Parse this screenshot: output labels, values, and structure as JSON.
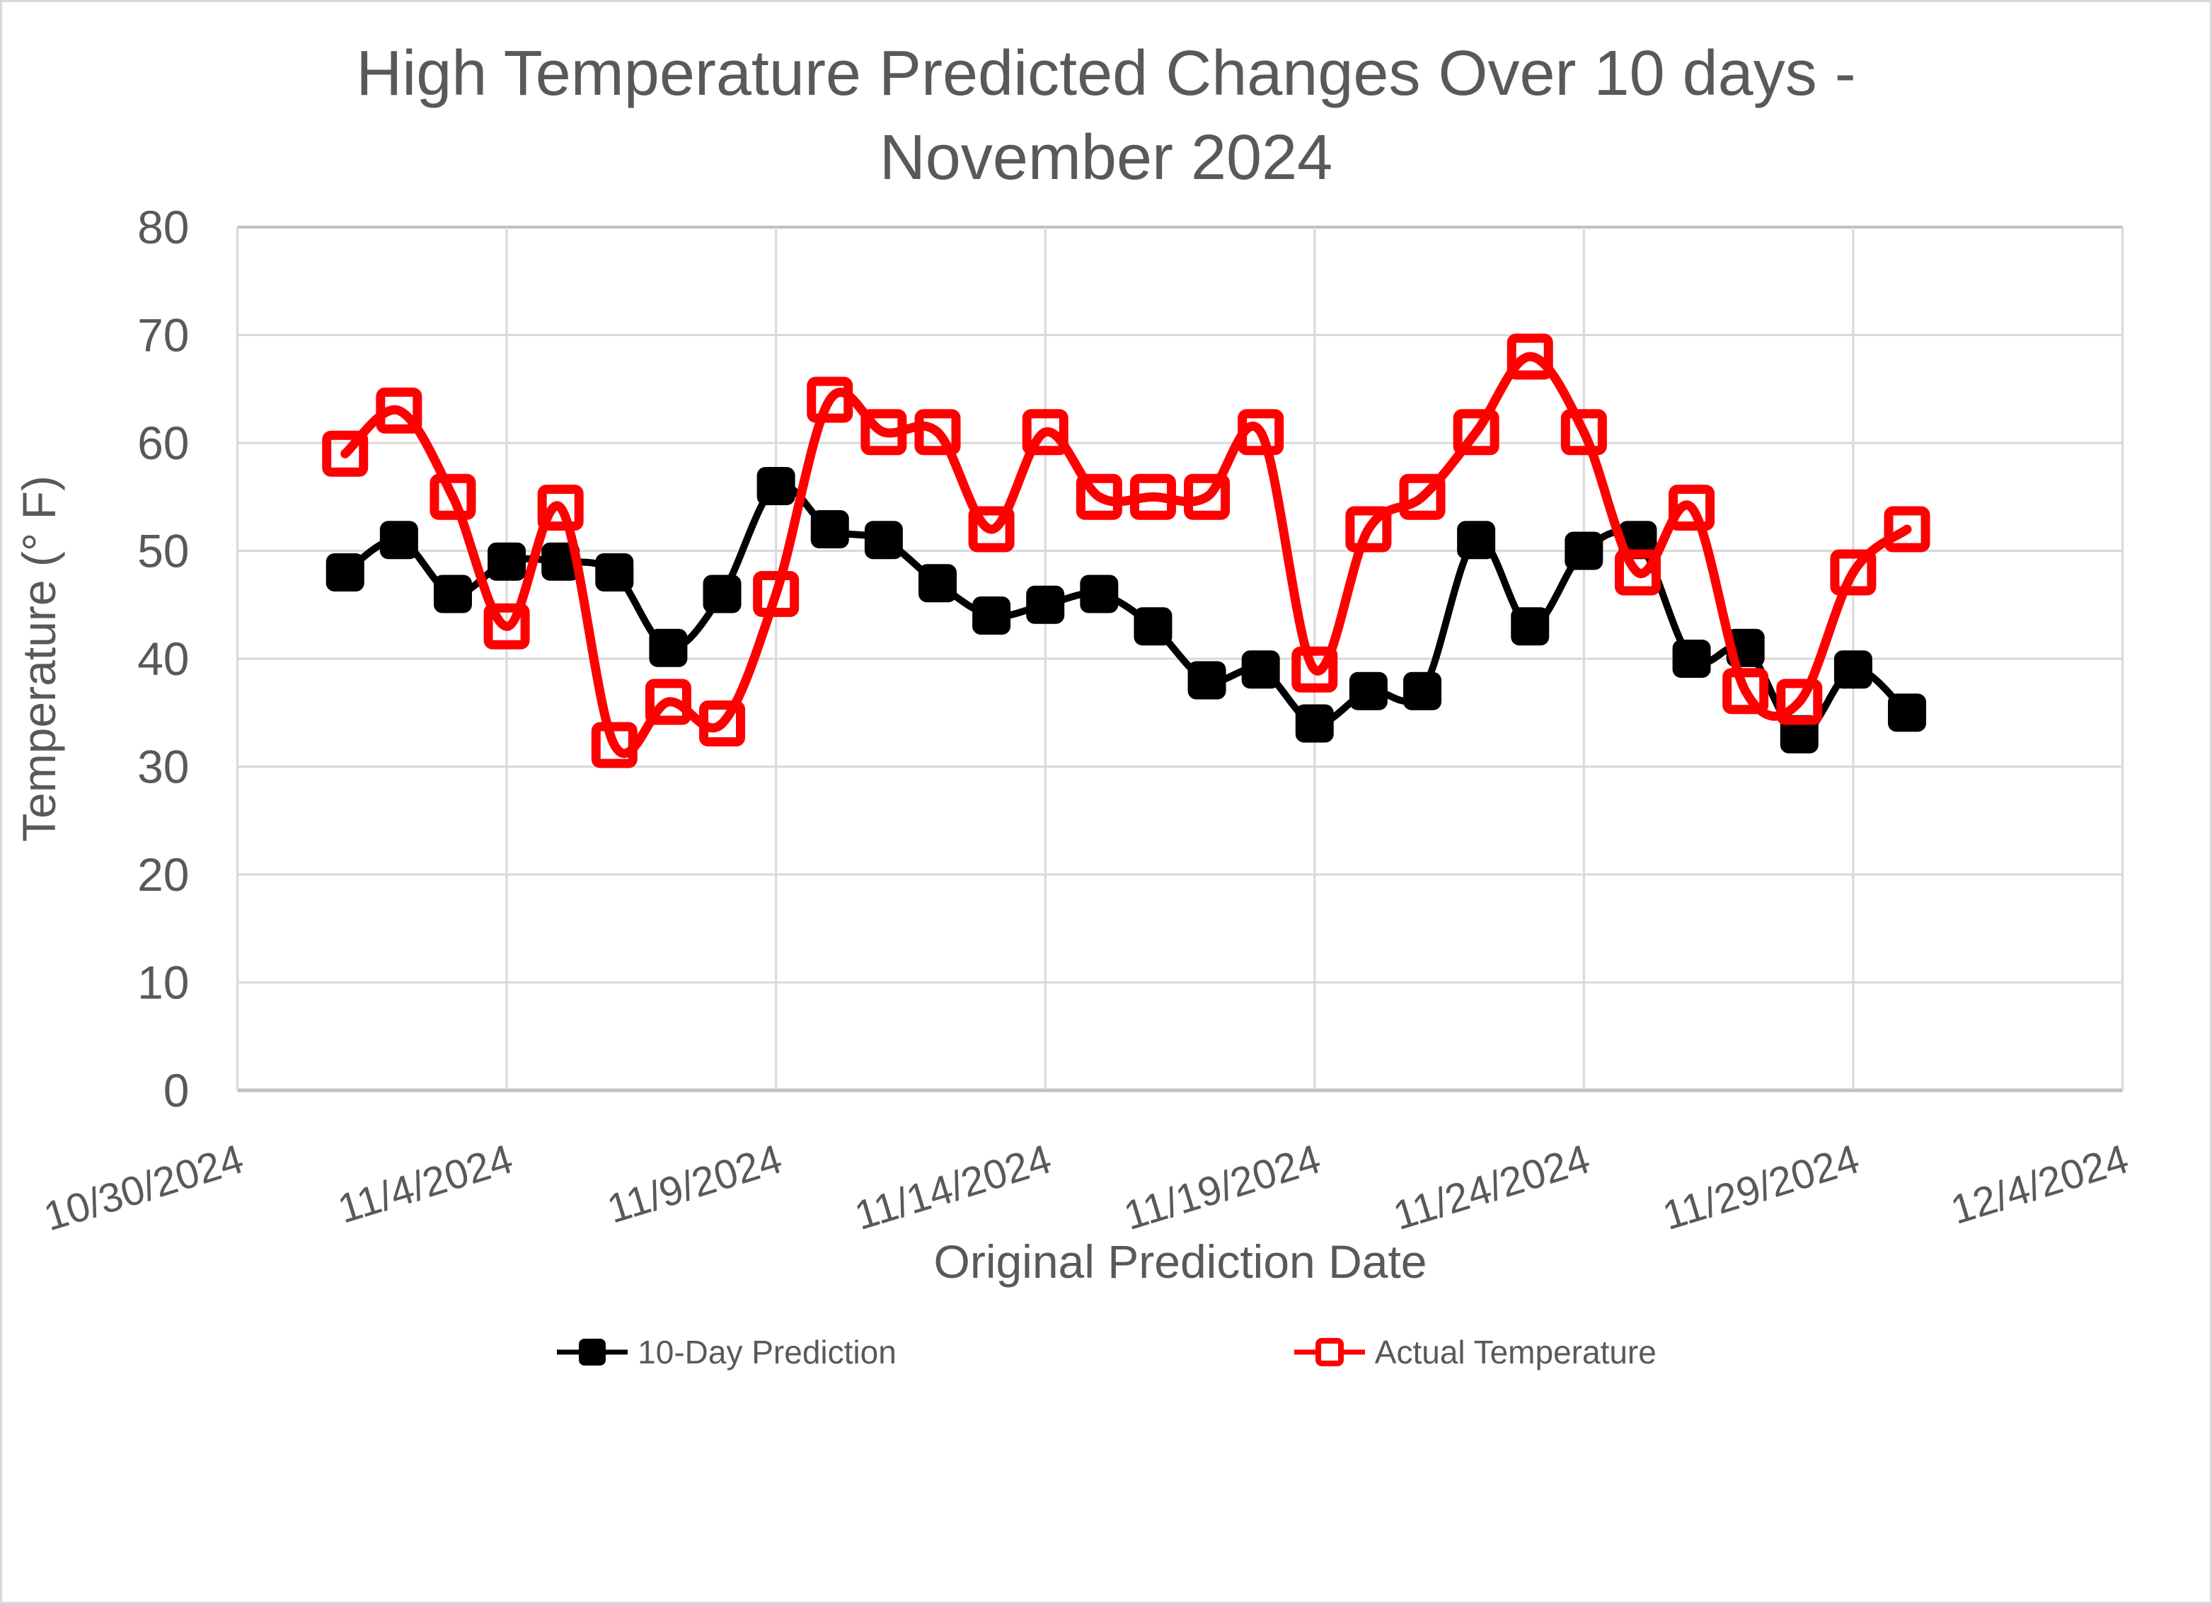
{
  "title": {
    "line1": "High Temperature Predicted Changes Over 10 days -",
    "line2": "November 2024"
  },
  "chart_data": {
    "type": "line",
    "title": "High Temperature Predicted Changes Over 10 days - November 2024",
    "xlabel": "Original Prediction Date",
    "ylabel": "Temperature (° F)",
    "ylim": [
      0,
      80
    ],
    "ytick_step": 10,
    "ytick_labels": [
      "0",
      "10",
      "20",
      "30",
      "40",
      "50",
      "60",
      "70",
      "80"
    ],
    "xtick_labels": [
      "10/30/2024",
      "11/4/2024",
      "11/9/2024",
      "11/14/2024",
      "11/19/2024",
      "11/24/2024",
      "11/29/2024",
      "12/4/2024"
    ],
    "x_range_days": [
      "10/30/2024",
      "12/4/2024"
    ],
    "grid": true,
    "legend_position": "bottom",
    "x": [
      "11/1/2024",
      "11/2/2024",
      "11/3/2024",
      "11/4/2024",
      "11/5/2024",
      "11/6/2024",
      "11/7/2024",
      "11/8/2024",
      "11/9/2024",
      "11/10/2024",
      "11/11/2024",
      "11/12/2024",
      "11/13/2024",
      "11/14/2024",
      "11/15/2024",
      "11/16/2024",
      "11/17/2024",
      "11/18/2024",
      "11/19/2024",
      "11/20/2024",
      "11/21/2024",
      "11/22/2024",
      "11/23/2024",
      "11/24/2024",
      "11/25/2024",
      "11/26/2024",
      "11/27/2024",
      "11/28/2024",
      "11/29/2024",
      "11/30/2024"
    ],
    "series": [
      {
        "name": "10-Day Prediction",
        "color": "#000000",
        "marker": "filled-square",
        "line_style": "smooth",
        "values": [
          48,
          51,
          46,
          49,
          49,
          48,
          41,
          46,
          56,
          52,
          51,
          47,
          44,
          45,
          46,
          43,
          38,
          39,
          34,
          37,
          37,
          51,
          43,
          50,
          51,
          40,
          41,
          33,
          39,
          35
        ]
      },
      {
        "name": "Actual Temperature",
        "color": "#FF0000",
        "marker": "open-square",
        "line_style": "smooth",
        "values": [
          59,
          63,
          55,
          43,
          54,
          32,
          36,
          34,
          46,
          64,
          61,
          61,
          52,
          61,
          55,
          55,
          55,
          61,
          39,
          52,
          55,
          61,
          68,
          61,
          48,
          54,
          37,
          36,
          48,
          52
        ]
      }
    ]
  },
  "legend": {
    "prediction_label": "10-Day Prediction",
    "actual_label": "Actual Temperature"
  },
  "colors": {
    "background": "#FFFFFF",
    "grid": "#D9D9D9",
    "axis_line": "#BFBFBF",
    "text": "#595959",
    "series_prediction": "#000000",
    "series_actual": "#FF0000"
  }
}
